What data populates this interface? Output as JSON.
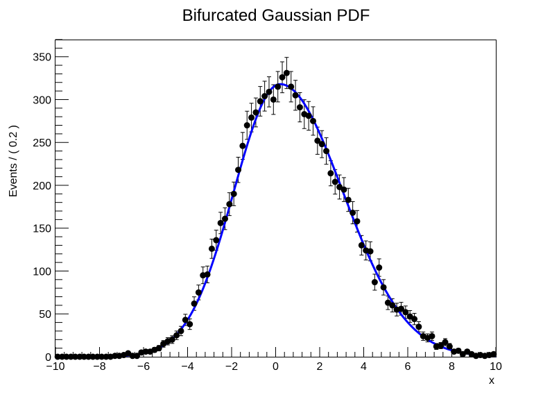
{
  "chart_data": {
    "type": "scatter",
    "title": "Bifurcated Gaussian PDF",
    "xlabel": "x",
    "ylabel": "Events / ( 0.2 )",
    "xlim": [
      -10,
      10
    ],
    "ylim": [
      0,
      370
    ],
    "x_ticks": [
      -10,
      -8,
      -6,
      -4,
      -2,
      0,
      2,
      4,
      6,
      8,
      10
    ],
    "y_ticks": [
      0,
      50,
      100,
      150,
      200,
      250,
      300,
      350
    ],
    "grid": false,
    "legend": "none",
    "series": [
      {
        "kind": "points-with-errors",
        "color": "#000000",
        "x": [
          -9.9,
          -9.7,
          -9.5,
          -9.3,
          -9.1,
          -8.9,
          -8.7,
          -8.5,
          -8.3,
          -8.1,
          -7.9,
          -7.7,
          -7.5,
          -7.3,
          -7.1,
          -6.9,
          -6.7,
          -6.5,
          -6.3,
          -6.1,
          -5.9,
          -5.7,
          -5.5,
          -5.3,
          -5.1,
          -4.9,
          -4.7,
          -4.5,
          -4.3,
          -4.1,
          -3.9,
          -3.7,
          -3.5,
          -3.3,
          -3.1,
          -2.9,
          -2.7,
          -2.5,
          -2.3,
          -2.1,
          -1.9,
          -1.7,
          -1.5,
          -1.3,
          -1.1,
          -0.9,
          -0.7,
          -0.5,
          -0.3,
          -0.1,
          0.1,
          0.3,
          0.5,
          0.7,
          0.9,
          1.1,
          1.3,
          1.5,
          1.7,
          1.9,
          2.1,
          2.3,
          2.5,
          2.7,
          2.9,
          3.1,
          3.3,
          3.5,
          3.7,
          3.9,
          4.1,
          4.3,
          4.5,
          4.7,
          4.9,
          5.1,
          5.3,
          5.5,
          5.7,
          5.9,
          6.1,
          6.3,
          6.5,
          6.7,
          6.9,
          7.1,
          7.3,
          7.5,
          7.7,
          7.9,
          8.1,
          8.3,
          8.5,
          8.7,
          8.9,
          9.1,
          9.3,
          9.5,
          9.7,
          9.9
        ],
        "y": [
          0,
          0,
          0,
          0,
          0,
          0,
          0,
          0,
          0,
          0,
          0,
          0,
          0,
          1,
          1,
          2,
          4,
          1,
          1,
          5,
          6,
          6,
          8,
          10,
          15,
          18,
          20,
          25,
          30,
          43,
          38,
          62,
          75,
          95,
          96,
          126,
          136,
          156,
          161,
          178,
          190,
          218,
          246,
          270,
          279,
          285,
          298,
          304,
          309,
          300,
          315,
          326,
          331,
          315,
          305,
          291,
          283,
          281,
          275,
          252,
          248,
          240,
          214,
          204,
          198,
          195,
          183,
          168,
          158,
          130,
          124,
          123,
          87,
          104,
          81,
          63,
          60,
          55,
          56,
          52,
          47,
          44,
          35,
          24,
          22,
          24,
          12,
          13,
          17,
          12,
          6,
          7,
          3,
          6,
          3,
          1,
          2,
          1,
          2,
          3
        ]
      },
      {
        "kind": "curve",
        "color": "#0000ff",
        "function": "bifurcated-gaussian",
        "mean": 0.2,
        "sigma_left": 2.1,
        "sigma_right": 2.85,
        "peak": 318
      }
    ]
  }
}
